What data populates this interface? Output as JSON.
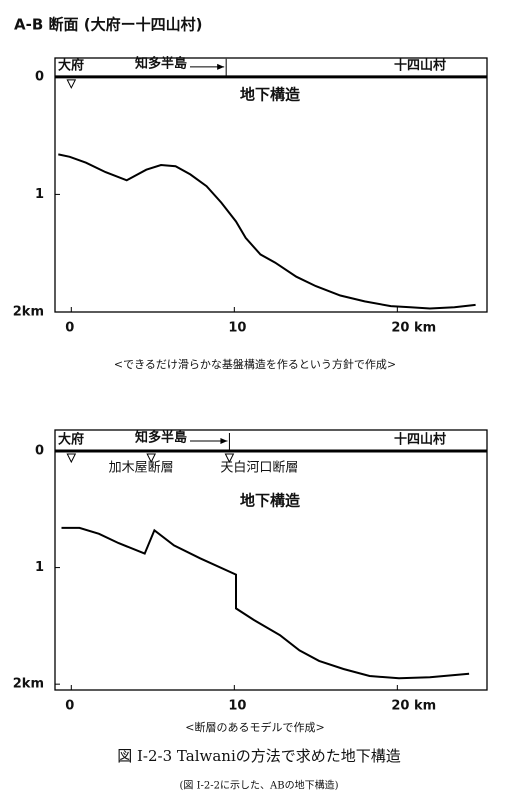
{
  "title": "A-B 断面 (大府ー十四山村)",
  "chart_data": [
    {
      "type": "line",
      "start": {
        "label": "大府",
        "x": 0
      },
      "peninsula": {
        "label": "知多半島",
        "x": 9.5
      },
      "end_label": "十四山村",
      "structure_label": "地下構造",
      "caption": "<できるだけ滑らかな基盤構造を作るという方針で作成>",
      "x": [
        -0.8,
        -0.1,
        0.9,
        2.1,
        3.4,
        4.6,
        5.5,
        6.4,
        7.3,
        8.3,
        9.2,
        10.1,
        10.7,
        11.6,
        12.5,
        13.8,
        15.0,
        16.5,
        18.0,
        19.6,
        20.8,
        22.0,
        23.5,
        24.8
      ],
      "values": [
        0.66,
        0.68,
        0.73,
        0.81,
        0.88,
        0.79,
        0.75,
        0.76,
        0.83,
        0.93,
        1.07,
        1.23,
        1.37,
        1.51,
        1.58,
        1.7,
        1.78,
        1.86,
        1.91,
        1.95,
        1.96,
        1.97,
        1.96,
        1.94
      ],
      "color": "#000000",
      "xlim": [
        -1,
        25.5
      ],
      "ylim": [
        2,
        -0.16
      ],
      "xticks": [
        0,
        10,
        {
          "value": 20,
          "label": "20 km"
        }
      ],
      "yticks": [
        0,
        1,
        {
          "value": 2,
          "label": "2km"
        }
      ]
    },
    {
      "type": "line",
      "start": {
        "label": "大府",
        "x": 0
      },
      "peninsula": {
        "label": "知多半島",
        "x": 9.7
      },
      "end_label": "十四山村",
      "structure_label": "地下構造",
      "faults": [
        {
          "name": "加木屋断層",
          "x": 4.9
        },
        {
          "name": "天白河口断層",
          "x": 9.7
        }
      ],
      "caption": "<断層のあるモデルで作成>",
      "x": [
        -0.6,
        0.5,
        1.7,
        2.9,
        4.5,
        5.1,
        6.3,
        7.9,
        10.1,
        10.1,
        11.2,
        12.8,
        14.0,
        15.2,
        16.7,
        18.3,
        20.1,
        22.0,
        24.4
      ],
      "values": [
        0.66,
        0.66,
        0.71,
        0.79,
        0.88,
        0.68,
        0.81,
        0.92,
        1.06,
        1.35,
        1.45,
        1.58,
        1.71,
        1.8,
        1.87,
        1.93,
        1.95,
        1.94,
        1.91
      ],
      "color": "#000000",
      "xlim": [
        -1,
        25.5
      ],
      "ylim": [
        2.05,
        -0.18
      ],
      "xticks": [
        0,
        10,
        {
          "value": 20,
          "label": "20 km"
        }
      ],
      "yticks": [
        0,
        1,
        {
          "value": 2,
          "label": "2km"
        }
      ]
    }
  ],
  "figure_caption": "図 I-2-3  Talwaniの方法で求めた地下構造",
  "figure_subcaption": "(図 I-2-2に示した、ABの地下構造)"
}
